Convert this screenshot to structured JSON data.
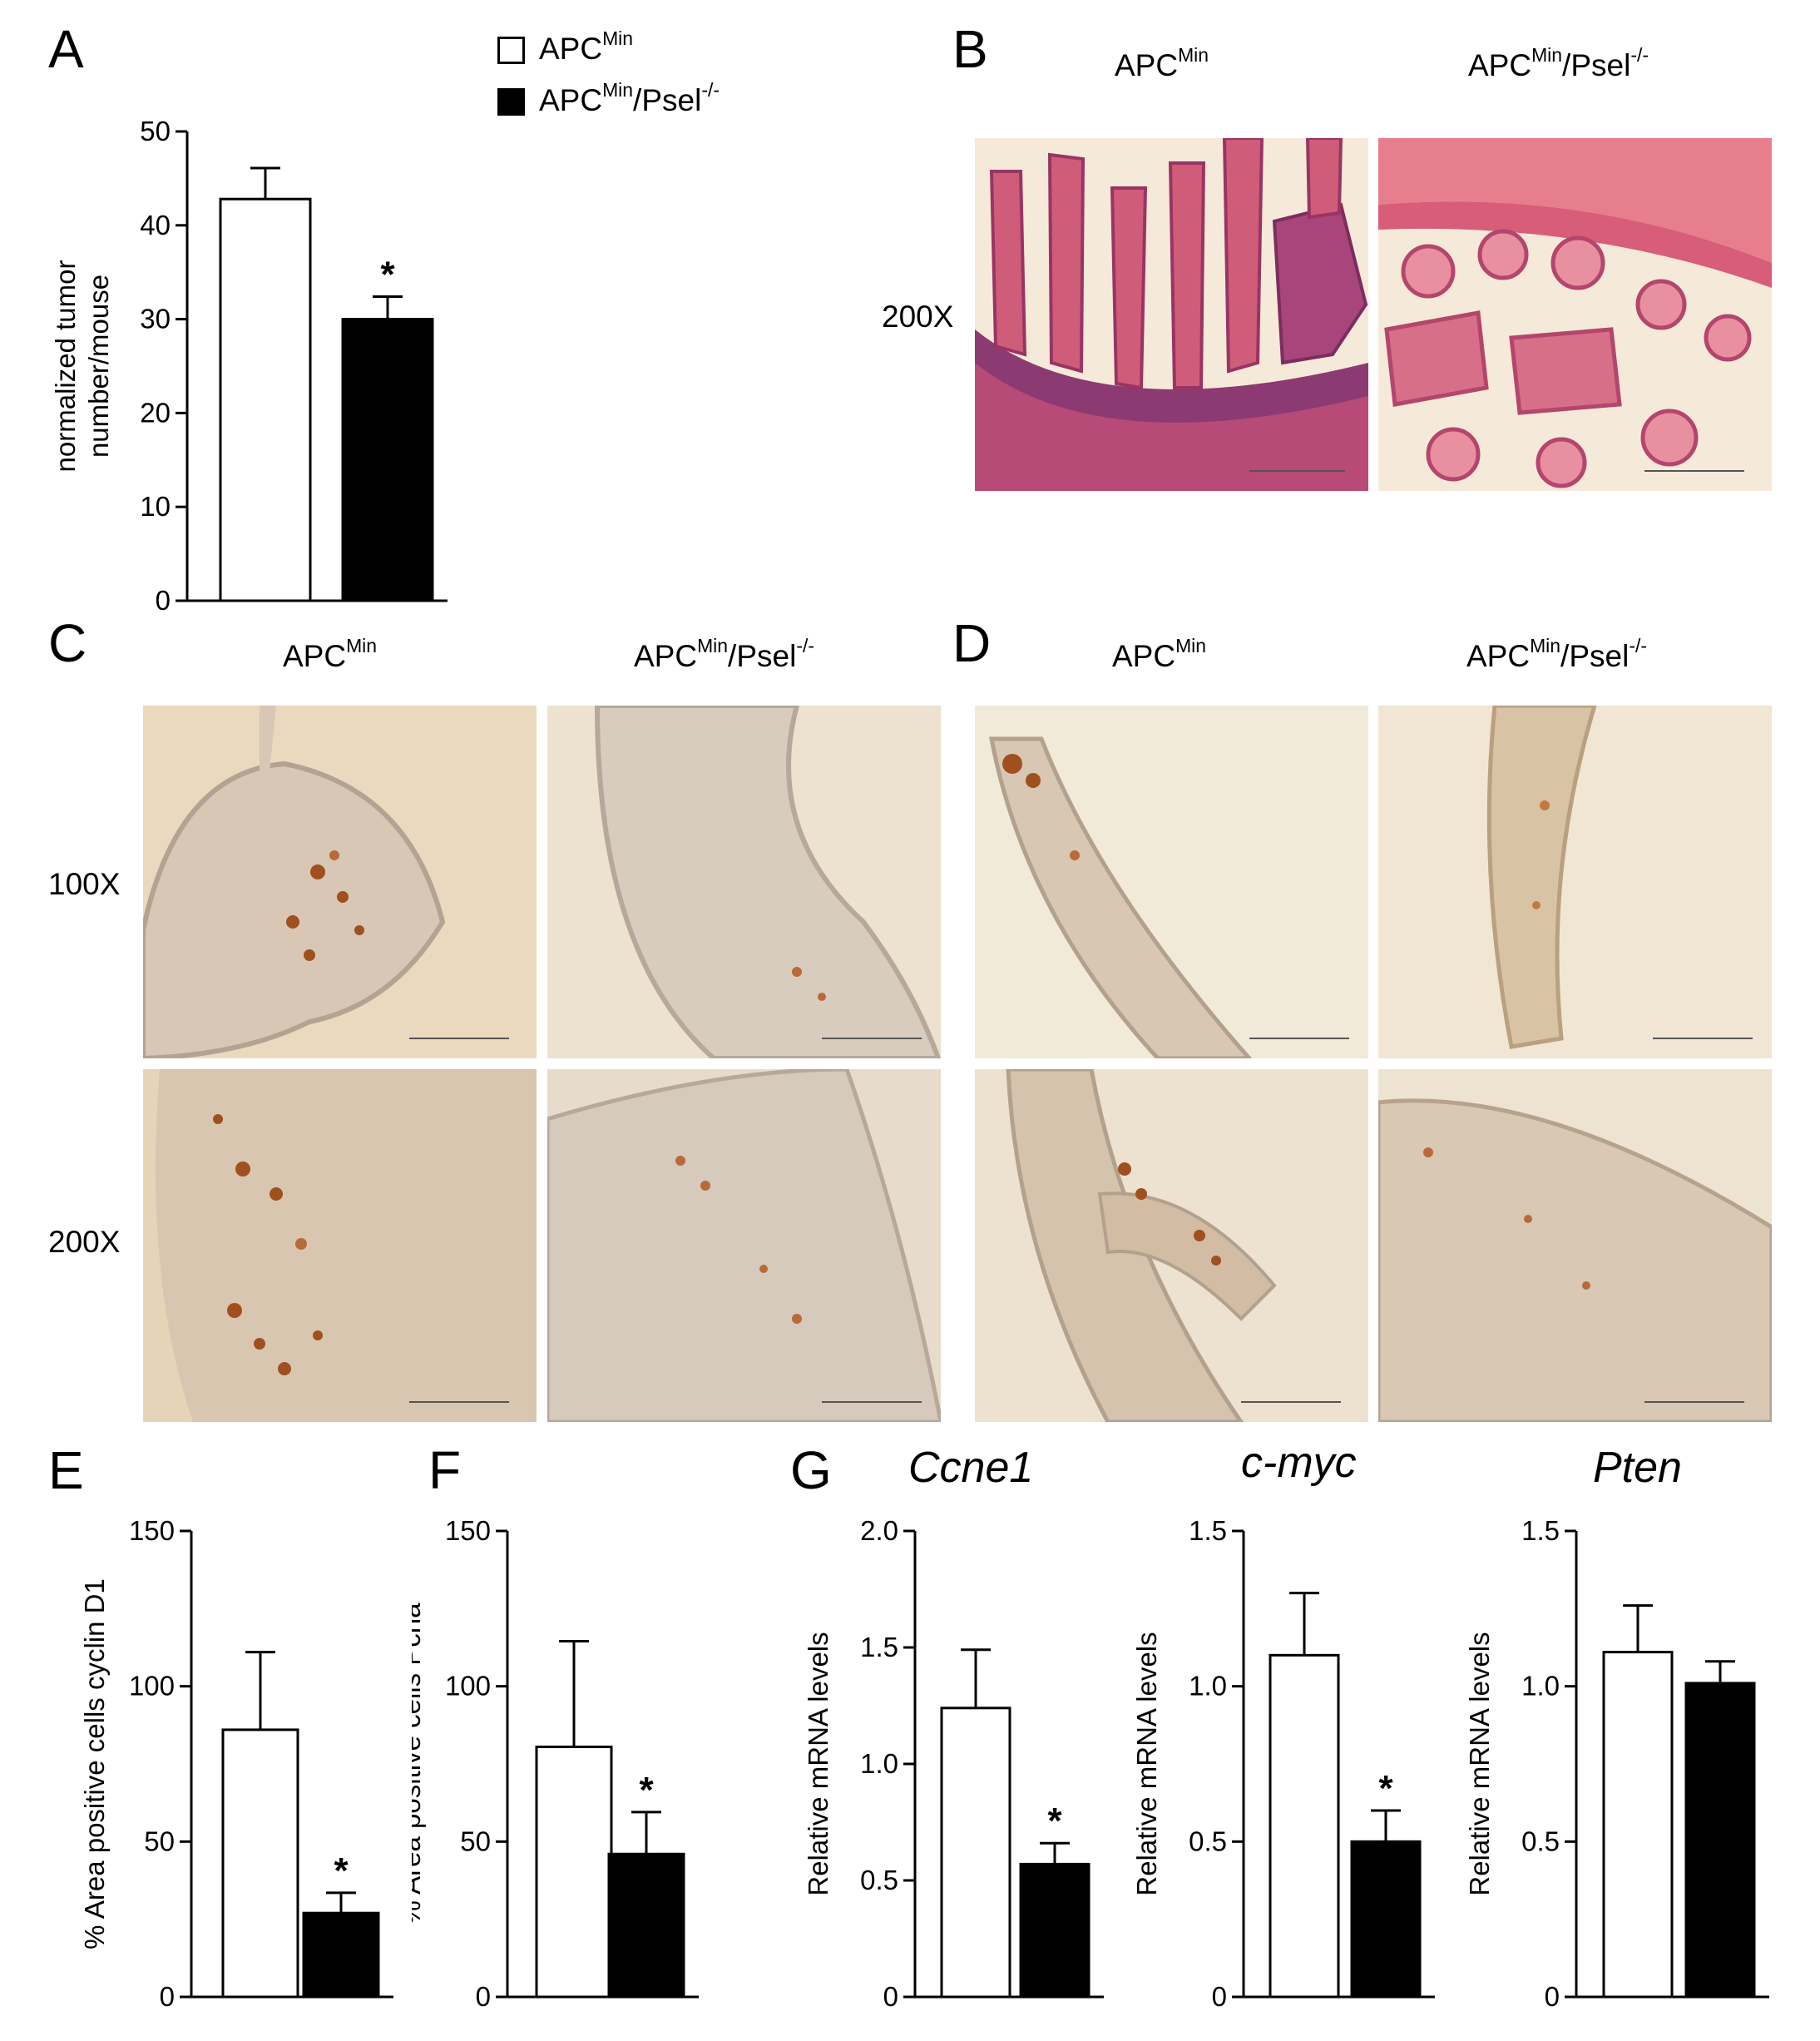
{
  "panels": {
    "A": "A",
    "B": "B",
    "C": "C",
    "D": "D",
    "E": "E",
    "F": "F",
    "G": "G"
  },
  "legend": [
    {
      "base": "APC",
      "sup": "Min",
      "tail": "",
      "tail_sup": "",
      "fill": "#ffffff"
    },
    {
      "base": "APC",
      "sup": "Min",
      "tail": "/Psel",
      "tail_sup": "-/-",
      "fill": "#000000"
    }
  ],
  "group_labels": {
    "wt": {
      "base": "APC",
      "sup": "Min",
      "tail": "",
      "tail_sup": ""
    },
    "ko": {
      "base": "APC",
      "sup": "Min",
      "tail": "/Psel",
      "tail_sup": "-/-"
    }
  },
  "magnifications": {
    "x100": "100X",
    "x200": "200X"
  },
  "gene_titles": {
    "g1": "Ccne1",
    "g2": "c-myc",
    "g3": "Pten"
  },
  "colors": {
    "wt_bar": "#ffffff",
    "ko_bar": "#000000",
    "he_stain": "#c8506e",
    "ihc_bg": "#e9d8bf",
    "ihc_dab": "#a0501e"
  },
  "chart_data": [
    {
      "id": "A",
      "type": "bar",
      "title": "",
      "ylabel": "normalized tumor number/mouse",
      "categories": [
        "APCMin",
        "APCMin/Psel-/-"
      ],
      "values": [
        42.8,
        30
      ],
      "errors": [
        3.3,
        2.4
      ],
      "ylim": [
        0,
        50
      ],
      "yticks": [
        0,
        10,
        20,
        30,
        40,
        50
      ],
      "tick_labels": [
        "0",
        "10",
        "20",
        "30",
        "40",
        "50"
      ],
      "significance": [
        false,
        true
      ],
      "sig_mark": "*"
    },
    {
      "id": "E",
      "type": "bar",
      "title": "",
      "ylabel": "% Area positive cells cyclin D1",
      "categories": [
        "APCMin",
        "APCMin/Psel-/-"
      ],
      "values": [
        86,
        27
      ],
      "errors": [
        25,
        6.5
      ],
      "ylim": [
        0,
        150
      ],
      "yticks": [
        0,
        50,
        100,
        150
      ],
      "tick_labels": [
        "0",
        "50",
        "100",
        "150"
      ],
      "significance": [
        false,
        true
      ],
      "sig_mark": "*"
    },
    {
      "id": "F",
      "type": "bar",
      "title": "",
      "ylabel": "% Area positive cells Pcna",
      "categories": [
        "APCMin",
        "APCMin/Psel-/-"
      ],
      "values": [
        80.5,
        46
      ],
      "errors": [
        34,
        13.5
      ],
      "ylim": [
        0,
        150
      ],
      "yticks": [
        0,
        50,
        100,
        150
      ],
      "tick_labels": [
        "0",
        "50",
        "100",
        "150"
      ],
      "significance": [
        false,
        true
      ],
      "sig_mark": "*"
    },
    {
      "id": "G1",
      "type": "bar",
      "title": "Ccne1",
      "ylabel": "Relative mRNA levels",
      "categories": [
        "APCMin",
        "APCMin/Psel-/-"
      ],
      "values": [
        1.24,
        0.57
      ],
      "errors": [
        0.25,
        0.09
      ],
      "ylim": [
        0,
        2
      ],
      "yticks": [
        0,
        0.5,
        1,
        1.5,
        2
      ],
      "tick_labels": [
        "0",
        "0.5",
        "1.0",
        "1.5",
        "2.0"
      ],
      "significance": [
        false,
        true
      ],
      "sig_mark": "*"
    },
    {
      "id": "G2",
      "type": "bar",
      "title": "c-myc",
      "ylabel": "Relative mRNA levels",
      "categories": [
        "APCMin",
        "APCMin/Psel-/-"
      ],
      "values": [
        1.1,
        0.5
      ],
      "errors": [
        0.2,
        0.1
      ],
      "ylim": [
        0,
        1.5
      ],
      "yticks": [
        0,
        0.5,
        1,
        1.5
      ],
      "tick_labels": [
        "0",
        "0.5",
        "1.0",
        "1.5"
      ],
      "significance": [
        false,
        true
      ],
      "sig_mark": "*"
    },
    {
      "id": "G3",
      "type": "bar",
      "title": "Pten",
      "ylabel": "Relative mRNA levels",
      "categories": [
        "APCMin",
        "APCMin/Psel-/-"
      ],
      "values": [
        1.11,
        1.01
      ],
      "errors": [
        0.15,
        0.07
      ],
      "ylim": [
        0,
        1.5
      ],
      "yticks": [
        0,
        0.5,
        1,
        1.5
      ],
      "tick_labels": [
        "0",
        "0.5",
        "1.0",
        "1.5"
      ],
      "significance": [
        false,
        false
      ],
      "sig_mark": "*"
    }
  ]
}
